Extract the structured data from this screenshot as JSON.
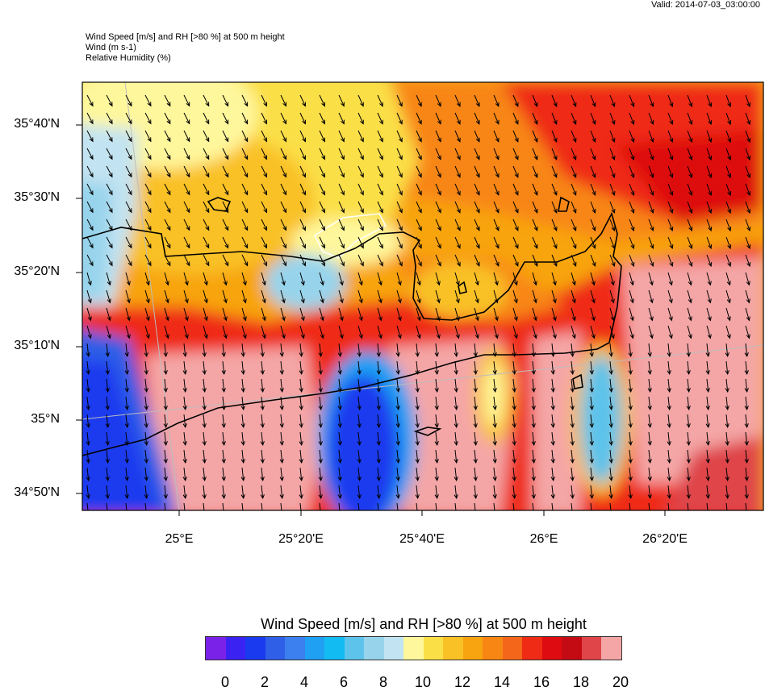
{
  "header": {
    "valid": "Valid: 2014-07-03_03:00:00",
    "line1": "Wind Speed [m/s] and RH [>80 %] at 500 m height",
    "line2": "Wind   (m s-1)",
    "line3": "Relative Humidity   (%)"
  },
  "lat_labels": [
    "35°40'N",
    "35°30'N",
    "35°20'N",
    "35°10'N",
    "35°N",
    "34°50'N"
  ],
  "lon_labels": [
    "25°E",
    "25°20'E",
    "25°40'E",
    "26°E",
    "26°20'E"
  ],
  "colorbar": {
    "title": "Wind Speed [m/s] and RH [>80 %] at 500 m height",
    "labels": [
      "0",
      "2",
      "4",
      "6",
      "8",
      "10",
      "12",
      "14",
      "16",
      "18",
      "20"
    ],
    "colors": [
      "#7b22e8",
      "#3a22f2",
      "#1a3aef",
      "#2f5fe6",
      "#3b80ee",
      "#1fa0f3",
      "#12bbf2",
      "#5dc3ea",
      "#97d4ec",
      "#c2e3f1",
      "#fff79c",
      "#fbdf47",
      "#f9c125",
      "#f8a411",
      "#f88612",
      "#f4671a",
      "#ef2b16",
      "#de0b10",
      "#c40b13",
      "#df4549",
      "#f4a6a6"
    ]
  },
  "map": {
    "land_outline_color": "#000000",
    "rh_contour_color": "#ffffff",
    "arrow_color": "#000000"
  }
}
